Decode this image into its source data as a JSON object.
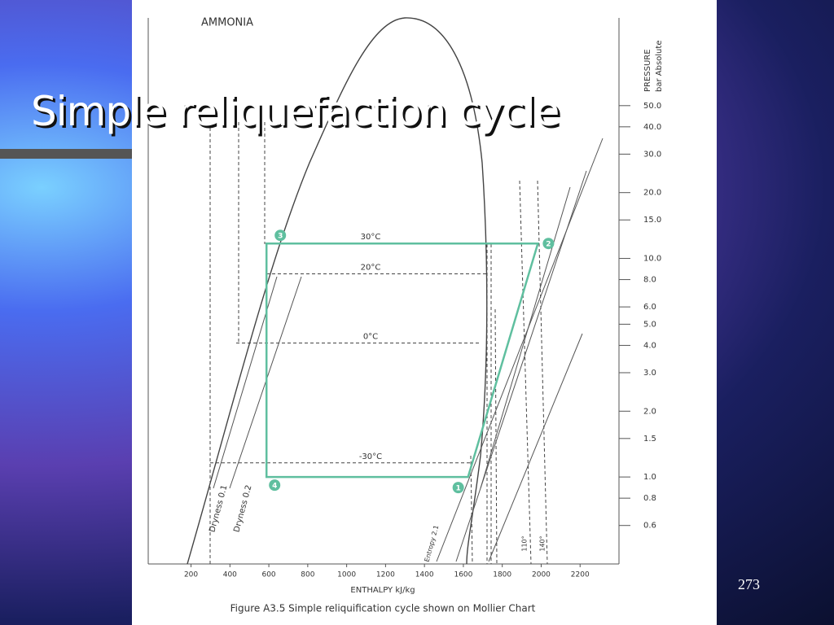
{
  "slide": {
    "title": "Simple reliquefaction cycle",
    "page_number": "273"
  },
  "chart_data": {
    "type": "line",
    "title": "AMMONIA",
    "xlabel": "ENTHALPY kJ/kg",
    "ylabel": [
      "PRESSURE",
      "bar Absolute"
    ],
    "caption": "Figure A3.5  Simple reliquification cycle shown on Mollier Chart",
    "log_y": true,
    "xlim": [
      -20,
      2400
    ],
    "xticks": [
      200,
      400,
      600,
      800,
      1000,
      1200,
      1400,
      1600,
      1800,
      2000,
      2200
    ],
    "ylim": [
      0.4,
      126
    ],
    "yticks": [
      {
        "value": 50,
        "label": "50.0"
      },
      {
        "value": 40,
        "label": "40.0"
      },
      {
        "value": 30,
        "label": "30.0"
      },
      {
        "value": 20,
        "label": "20.0"
      },
      {
        "value": 15,
        "label": "15.0"
      },
      {
        "value": 10,
        "label": "10.0"
      },
      {
        "value": 8,
        "label": "8.0"
      },
      {
        "value": 6,
        "label": "6.0"
      },
      {
        "value": 5,
        "label": "5.0"
      },
      {
        "value": 4,
        "label": "4.0"
      },
      {
        "value": 3,
        "label": "3.0"
      },
      {
        "value": 2,
        "label": "2.0"
      },
      {
        "value": 1.5,
        "label": "1.5"
      },
      {
        "value": 1,
        "label": "1.0"
      },
      {
        "value": 0.8,
        "label": "0.8"
      },
      {
        "value": 0.6,
        "label": "0.6"
      }
    ],
    "series": [
      {
        "color": "#5fbf9f",
        "x": [
          588,
          1624,
          1983,
          588
        ],
        "values": [
          1.0,
          1.0,
          11.7,
          11.7
        ],
        "point_labels": [
          "4",
          "1",
          "2",
          "3"
        ]
      }
    ],
    "isotherms": [
      {
        "label": "30°C",
        "value": 11.7
      },
      {
        "label": "20°C",
        "value": 8.5
      },
      {
        "label": "0°C",
        "value": 4.1
      },
      {
        "label": "-30°C",
        "value": 1.16
      }
    ],
    "annotations": [
      "Dryness 0.1",
      "Dryness 0.2",
      "Entropy 2.1",
      "110°",
      "140°"
    ]
  }
}
